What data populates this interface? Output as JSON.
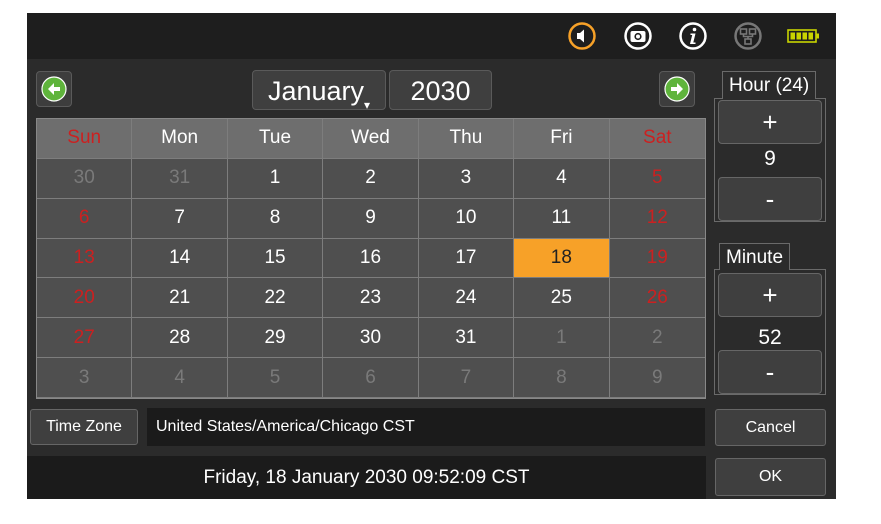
{
  "status_icons": [
    "speaker-icon",
    "camera-icon",
    "info-icon",
    "network-icon",
    "battery-icon"
  ],
  "colors": {
    "accent": "#f7a128",
    "weekend": "#cc2020",
    "nav_green": "#5fb43c"
  },
  "calendar": {
    "month": "January",
    "year": "2030",
    "weekdays": [
      "Sun",
      "Mon",
      "Tue",
      "Wed",
      "Thu",
      "Fri",
      "Sat"
    ],
    "weeks": [
      [
        "30",
        "31",
        "1",
        "2",
        "3",
        "4",
        "5"
      ],
      [
        "6",
        "7",
        "8",
        "9",
        "10",
        "11",
        "12"
      ],
      [
        "13",
        "14",
        "15",
        "16",
        "17",
        "18",
        "19"
      ],
      [
        "20",
        "21",
        "22",
        "23",
        "24",
        "25",
        "26"
      ],
      [
        "27",
        "28",
        "29",
        "30",
        "31",
        "1",
        "2"
      ],
      [
        "3",
        "4",
        "5",
        "6",
        "7",
        "8",
        "9"
      ]
    ],
    "selected_day": "18"
  },
  "hour": {
    "label": "Hour (24)",
    "plus": "+",
    "value": "9",
    "minus": "-"
  },
  "minute": {
    "label": "Minute",
    "plus": "+",
    "value": "52",
    "minus": "-"
  },
  "timezone": {
    "button": "Time Zone",
    "value": "United States/America/Chicago  CST"
  },
  "datetime": "Friday, 18 January 2030 09:52:09 CST",
  "actions": {
    "cancel": "Cancel",
    "ok": "OK"
  }
}
